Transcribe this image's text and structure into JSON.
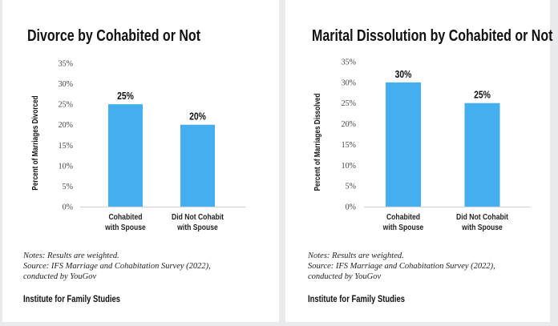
{
  "bar_color": "#44AEEE",
  "chart_data": [
    {
      "type": "bar",
      "title": "Divorce by Cohabited or Not",
      "xlabel": "",
      "ylabel": "Percent of Marriages Divorced",
      "categories": [
        "Cohabited\nwith Spouse",
        "Did Not Cohabit\nwith Spouse"
      ],
      "category_lines": [
        [
          "Cohabited",
          "with Spouse"
        ],
        [
          "Did Not Cohabit",
          "with Spouse"
        ]
      ],
      "values": [
        25,
        20
      ],
      "value_labels": [
        "25%",
        "20%"
      ],
      "ylim": [
        0,
        35
      ],
      "yticks": [
        0,
        5,
        10,
        15,
        20,
        25,
        30,
        35
      ],
      "ytick_labels": [
        "0%",
        "5%",
        "10%",
        "15%",
        "20%",
        "25%",
        "30%",
        "35%"
      ],
      "grid": false,
      "legend": "none"
    },
    {
      "type": "bar",
      "title": "Marital Dissolution by Cohabited or Not",
      "xlabel": "",
      "ylabel": "Percent of Marriages Dissolved",
      "categories": [
        "Cohabited\nwith Spouse",
        "Did Not Cohabit\nwith Spouse"
      ],
      "category_lines": [
        [
          "Cohabited",
          "with Spouse"
        ],
        [
          "Did Not Cohabit",
          "with Spouse"
        ]
      ],
      "values": [
        30,
        25
      ],
      "value_labels": [
        "30%",
        "25%"
      ],
      "ylim": [
        0,
        35
      ],
      "yticks": [
        0,
        5,
        10,
        15,
        20,
        25,
        30,
        35
      ],
      "ytick_labels": [
        "0%",
        "5%",
        "10%",
        "15%",
        "20%",
        "25%",
        "30%",
        "35%"
      ],
      "grid": false,
      "legend": "none"
    }
  ],
  "panels": [
    {
      "notes": [
        "Notes: Results are weighted.",
        "Source: IFS Marriage and Cohabitation Survey (2022),",
        "conducted by YouGov"
      ],
      "org": "Institute for Family Studies"
    },
    {
      "notes": [
        "Notes: Results are weighted.",
        "Source: IFS Marriage and Cohabitation Survey (2022),",
        "conducted by YouGov"
      ],
      "org": "Institute for Family Studies"
    }
  ]
}
